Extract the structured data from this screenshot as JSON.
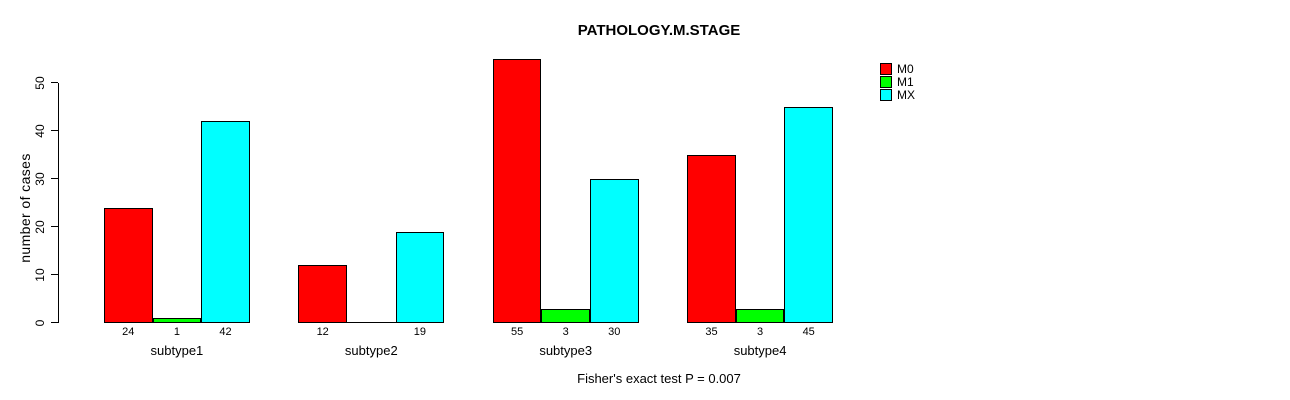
{
  "title": "PATHOLOGY.M.STAGE",
  "caption": "Fisher's exact test P = 0.007",
  "y_axis": {
    "label": "number of cases",
    "ticks": [
      0,
      10,
      20,
      30,
      40,
      50
    ]
  },
  "legend": {
    "position": "top-right",
    "items": [
      {
        "label": "M0",
        "color": "#ff0000"
      },
      {
        "label": "M1",
        "color": "#00ff00"
      },
      {
        "label": "MX",
        "color": "#00ffff"
      }
    ]
  },
  "chart_data": {
    "type": "bar",
    "title": "PATHOLOGY.M.STAGE",
    "xlabel": "",
    "ylabel": "number of cases",
    "ylim": [
      0,
      55
    ],
    "yticks": [
      0,
      10,
      20,
      30,
      40,
      50
    ],
    "grid": false,
    "legend_position": "top-right",
    "bar_border_color": "#000000",
    "categories": [
      "subtype1",
      "subtype2",
      "subtype3",
      "subtype4"
    ],
    "series": [
      {
        "name": "M0",
        "color": "#ff0000",
        "values": [
          24,
          12,
          55,
          35
        ]
      },
      {
        "name": "M1",
        "color": "#00ff00",
        "values": [
          1,
          0,
          3,
          3
        ]
      },
      {
        "name": "MX",
        "color": "#00ffff",
        "values": [
          42,
          19,
          30,
          45
        ]
      }
    ],
    "bar_value_labels": [
      [
        "24",
        "1",
        "42"
      ],
      [
        "12",
        "",
        "19"
      ],
      [
        "55",
        "3",
        "30"
      ],
      [
        "35",
        "3",
        "45"
      ]
    ],
    "annotation": "Fisher's exact test P = 0.007"
  }
}
